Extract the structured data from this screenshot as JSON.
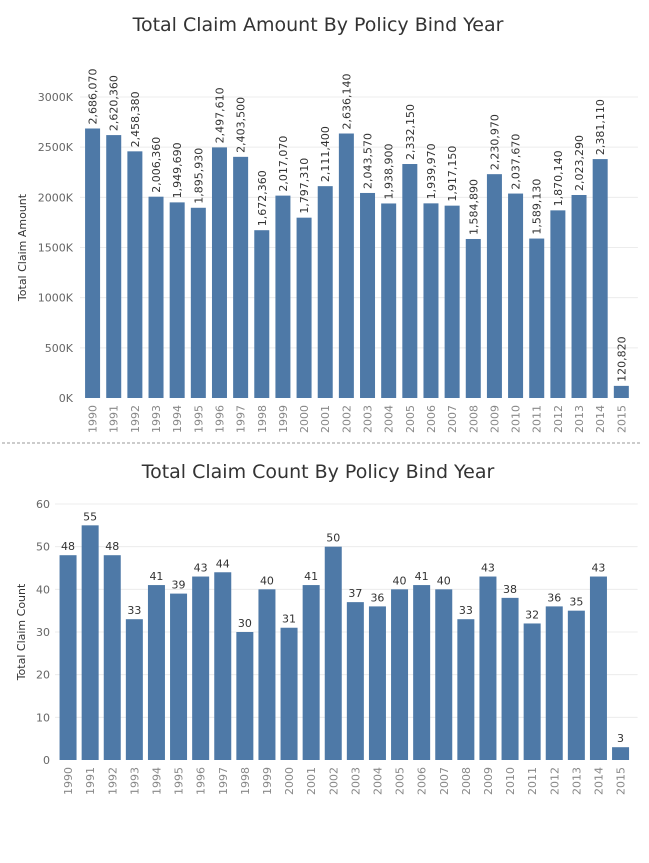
{
  "colors": {
    "bar": "#4e79a7",
    "text": "#333333",
    "tick": "#666666",
    "grid": "#ececec"
  },
  "chart_data": [
    {
      "type": "bar",
      "title": "Total Claim Amount By Policy Bind Year",
      "xlabel": "",
      "ylabel": "Total Claim Amount",
      "ylim": [
        0,
        3000000
      ],
      "yticks": [
        0,
        500000,
        1000000,
        1500000,
        2000000,
        2500000,
        3000000
      ],
      "ytick_labels": [
        "0K",
        "500K",
        "1000K",
        "1500K",
        "2000K",
        "2500K",
        "3000K"
      ],
      "label_orientation": "vertical",
      "grid": true,
      "categories": [
        "1990",
        "1991",
        "1992",
        "1993",
        "1994",
        "1995",
        "1996",
        "1997",
        "1998",
        "1999",
        "2000",
        "2001",
        "2002",
        "2003",
        "2004",
        "2005",
        "2006",
        "2007",
        "2008",
        "2009",
        "2010",
        "2011",
        "2012",
        "2013",
        "2014",
        "2015"
      ],
      "values": [
        2686070,
        2620360,
        2458380,
        2006360,
        1949690,
        1895930,
        2497610,
        2403500,
        1672360,
        2017070,
        1797310,
        2111400,
        2636140,
        2043570,
        1938900,
        2332150,
        1939970,
        1917150,
        1584890,
        2230970,
        2037670,
        1589130,
        1870140,
        2023290,
        2381110,
        120820
      ],
      "data_labels": [
        "2,686,070",
        "2,620,360",
        "2,458,380",
        "2,006,360",
        "1,949,690",
        "1,895,930",
        "2,497,610",
        "2,403,500",
        "1,672,360",
        "2,017,070",
        "1,797,310",
        "2,111,400",
        "2,636,140",
        "2,043,570",
        "1,938,900",
        "2,332,150",
        "1,939,970",
        "1,917,150",
        "1,584,890",
        "2,230,970",
        "2,037,670",
        "1,589,130",
        "1,870,140",
        "2,023,290",
        "2,381,110",
        "120,820"
      ]
    },
    {
      "type": "bar",
      "title": "Total Claim Count By Policy Bind Year",
      "xlabel": "",
      "ylabel": "Total Claim Count",
      "ylim": [
        0,
        60
      ],
      "yticks": [
        0,
        10,
        20,
        30,
        40,
        50,
        60
      ],
      "ytick_labels": [
        "0",
        "10",
        "20",
        "30",
        "40",
        "50",
        "60"
      ],
      "label_orientation": "horizontal",
      "grid": true,
      "categories": [
        "1990",
        "1991",
        "1992",
        "1993",
        "1994",
        "1995",
        "1996",
        "1997",
        "1998",
        "1999",
        "2000",
        "2001",
        "2002",
        "2003",
        "2004",
        "2005",
        "2006",
        "2007",
        "2008",
        "2009",
        "2010",
        "2011",
        "2012",
        "2013",
        "2014",
        "2015"
      ],
      "values": [
        48,
        55,
        48,
        33,
        41,
        39,
        43,
        44,
        30,
        40,
        31,
        41,
        50,
        37,
        36,
        40,
        41,
        40,
        33,
        43,
        38,
        32,
        36,
        35,
        43,
        3
      ],
      "data_labels": [
        "48",
        "55",
        "48",
        "33",
        "41",
        "39",
        "43",
        "44",
        "30",
        "40",
        "31",
        "41",
        "50",
        "37",
        "36",
        "40",
        "41",
        "40",
        "33",
        "43",
        "38",
        "32",
        "36",
        "35",
        "43",
        "3"
      ]
    }
  ]
}
